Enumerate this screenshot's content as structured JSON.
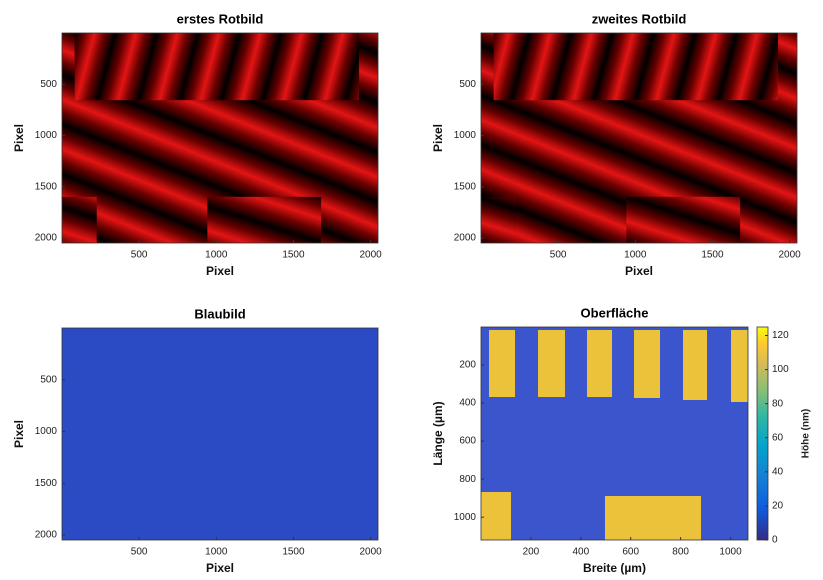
{
  "chart_data": [
    {
      "type": "image",
      "title": "erstes Rotbild",
      "xlabel": "Pixel",
      "ylabel": "Pixel",
      "xlim": [
        0,
        2048
      ],
      "ylim": [
        0,
        2048
      ],
      "xticks": [
        500,
        1000,
        1500,
        2000
      ],
      "yticks": [
        500,
        1000,
        1500,
        2000
      ],
      "colormap": "red"
    },
    {
      "type": "image",
      "title": "zweites Rotbild",
      "xlabel": "Pixel",
      "ylabel": "Pixel",
      "xlim": [
        0,
        2048
      ],
      "ylim": [
        0,
        2048
      ],
      "xticks": [
        500,
        1000,
        1500,
        2000
      ],
      "yticks": [
        500,
        1000,
        1500,
        2000
      ],
      "colormap": "red"
    },
    {
      "type": "image",
      "title": "Blaubild",
      "xlabel": "Pixel",
      "ylabel": "Pixel",
      "xlim": [
        0,
        2048
      ],
      "ylim": [
        0,
        2048
      ],
      "xticks": [
        500,
        1000,
        1500,
        2000
      ],
      "yticks": [
        500,
        1000,
        1500,
        2000
      ],
      "colormap": "blue"
    },
    {
      "type": "image",
      "title": "Oberfläche",
      "xlabel": "Breite (µm)",
      "ylabel": "Länge (µm)",
      "xlim": [
        0,
        1070
      ],
      "ylim": [
        0,
        1120
      ],
      "xticks": [
        200,
        400,
        600,
        800,
        1000
      ],
      "yticks": [
        200,
        400,
        600,
        800,
        1000
      ],
      "colormap": "parula",
      "colorbar_label": "Höhe (nm)",
      "clim": [
        0,
        125
      ],
      "cticks": [
        0,
        20,
        40,
        60,
        80,
        100,
        120
      ]
    }
  ]
}
